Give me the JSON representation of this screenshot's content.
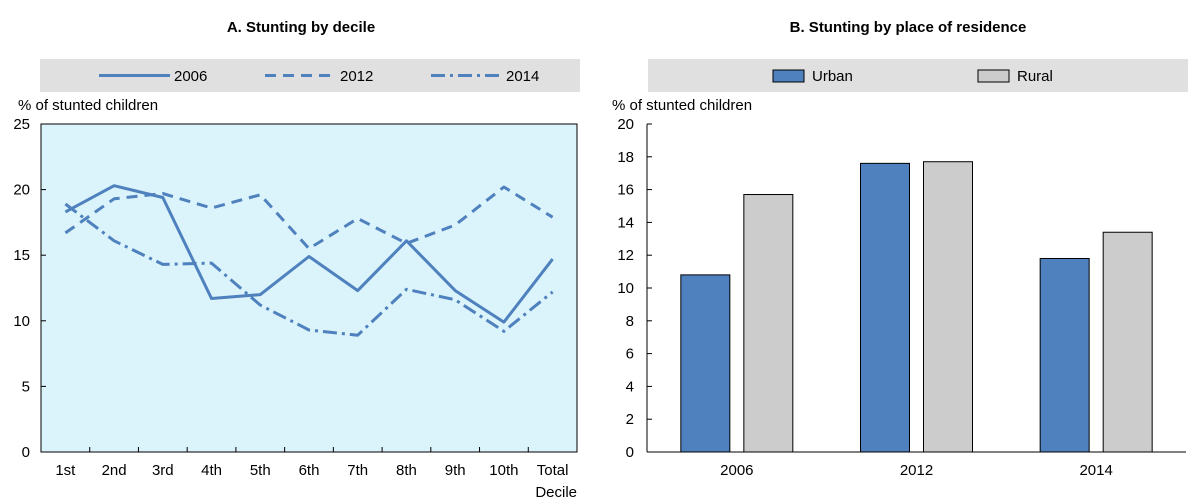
{
  "chart_data": [
    {
      "type": "line",
      "title": "A. Stunting by decile",
      "ylabel": "% of stunted children",
      "xlabel": "Decile",
      "ylim": [
        0,
        25
      ],
      "yticks": [
        "0",
        "5",
        "10",
        "15",
        "20",
        "25"
      ],
      "categories": [
        "1st",
        "2nd",
        "3rd",
        "4th",
        "5th",
        "6th",
        "7th",
        "8th",
        "9th",
        "10th",
        "Total"
      ],
      "grid": false,
      "legend_position": "top",
      "series": [
        {
          "name": "2006",
          "style": "solid",
          "color": "#4e81bd",
          "values": [
            18.3,
            20.3,
            19.4,
            11.7,
            12.0,
            14.9,
            12.3,
            16.1,
            12.3,
            9.9,
            14.7
          ]
        },
        {
          "name": "2012",
          "style": "dashed",
          "color": "#4e81bd",
          "values": [
            16.7,
            19.3,
            19.7,
            18.6,
            19.6,
            15.5,
            17.8,
            15.9,
            17.3,
            20.2,
            17.9
          ]
        },
        {
          "name": "2014",
          "style": "dashdot",
          "color": "#4e81bd",
          "values": [
            18.9,
            16.1,
            14.3,
            14.4,
            11.2,
            9.3,
            8.9,
            12.4,
            11.6,
            9.2,
            12.2
          ]
        }
      ]
    },
    {
      "type": "bar",
      "title": "B. Stunting by place of residence",
      "ylabel": "% of stunted children",
      "xlabel": "",
      "ylim": [
        0,
        20
      ],
      "yticks": [
        "0",
        "2",
        "4",
        "6",
        "8",
        "10",
        "12",
        "14",
        "16",
        "18",
        "20"
      ],
      "categories": [
        "2006",
        "2012",
        "2014"
      ],
      "grid": false,
      "legend_position": "top",
      "series": [
        {
          "name": "Urban",
          "color": "#4e81bd",
          "values": [
            10.8,
            17.6,
            11.8
          ]
        },
        {
          "name": "Rural",
          "color": "#cccccc",
          "values": [
            15.7,
            17.7,
            13.4
          ]
        }
      ]
    }
  ]
}
